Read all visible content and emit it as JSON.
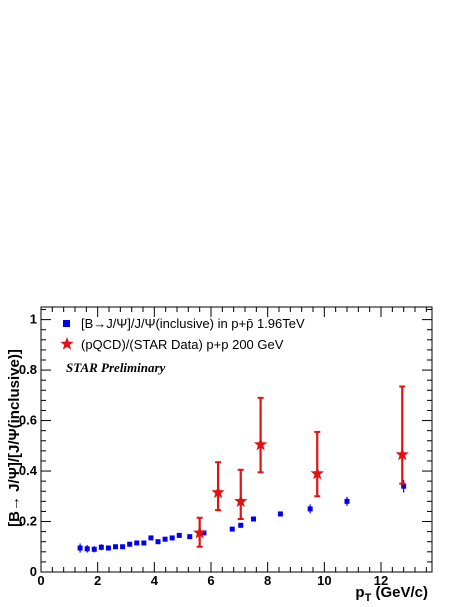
{
  "chart_data": {
    "type": "scatter",
    "xlabel_main": "p",
    "xlabel_sub": "T",
    "xlabel_unit": " (GeV/c)",
    "ylabel": "[B→ J/Ψ]/[J/Ψ(inclusive)]",
    "annotation": "STAR Preliminary",
    "xlim": [
      0,
      13.8
    ],
    "ylim": [
      0,
      1.05
    ],
    "x_ticks": [
      0,
      2,
      4,
      6,
      8,
      10,
      12
    ],
    "y_ticks": [
      0,
      0.2,
      0.4,
      0.6,
      0.8,
      1
    ],
    "x_tick_labels": [
      "0",
      "2",
      "4",
      "6",
      "8",
      "10",
      "12"
    ],
    "y_tick_labels": [
      "0",
      "0.2",
      "0.4",
      "0.6",
      "0.8",
      "1"
    ],
    "legend_position": "top-left",
    "series": [
      {
        "name": "[B→J/Ψ]/J/Ψ(inclusive) in p+p̄ 1.96TeV",
        "marker": "square",
        "color": "#0000ee",
        "x": [
          1.38,
          1.63,
          1.88,
          2.13,
          2.38,
          2.63,
          2.88,
          3.13,
          3.38,
          3.63,
          3.88,
          4.13,
          4.38,
          4.63,
          4.88,
          5.25,
          5.75,
          6.75,
          7.05,
          7.5,
          8.45,
          9.5,
          10.8,
          12.8
        ],
        "y": [
          0.095,
          0.092,
          0.09,
          0.098,
          0.095,
          0.1,
          0.1,
          0.11,
          0.115,
          0.115,
          0.135,
          0.12,
          0.13,
          0.135,
          0.145,
          0.14,
          0.155,
          0.17,
          0.185,
          0.21,
          0.23,
          0.25,
          0.28,
          0.34
        ],
        "err": [
          0.018,
          0.015,
          0.012,
          0.012,
          0.01,
          0.008,
          0.008,
          0.008,
          0.008,
          0.008,
          0.008,
          0.008,
          0.008,
          0.008,
          0.008,
          0.008,
          0.008,
          0.008,
          0.008,
          0.008,
          0.008,
          0.018,
          0.018,
          0.025
        ]
      },
      {
        "name": "(pQCD)/(STAR Data) p+p 200 GeV",
        "marker": "star",
        "color": "#e21212",
        "x": [
          5.6,
          6.25,
          7.05,
          7.75,
          9.75,
          12.75
        ],
        "y": [
          0.155,
          0.315,
          0.28,
          0.505,
          0.39,
          0.465
        ],
        "err_low": [
          0.055,
          0.07,
          0.07,
          0.11,
          0.09,
          0.115
        ],
        "err_high": [
          0.06,
          0.12,
          0.125,
          0.185,
          0.165,
          0.27
        ]
      }
    ]
  }
}
